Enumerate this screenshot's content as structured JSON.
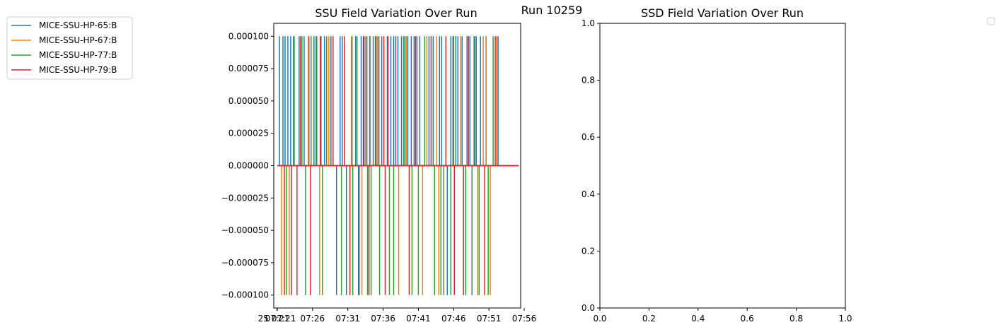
{
  "suptitle": "Run 10259",
  "empty_legend_box": true,
  "chart_data": [
    {
      "type": "line",
      "title": "SSU Field Variation Over Run",
      "xlabel": "",
      "ylabel": "",
      "ylim": [
        -0.00011,
        0.00011
      ],
      "yticks": [
        "0.000100",
        "0.000075",
        "0.000050",
        "0.000025",
        "0.000000",
        "−0.000025",
        "−0.000050",
        "−0.000075",
        "−0.000100"
      ],
      "ytick_values": [
        0.0001,
        7.5e-05,
        5e-05,
        2.5e-05,
        0,
        -2.5e-05,
        -5e-05,
        -7.5e-05,
        -0.0001
      ],
      "xticks": [
        "25 07:21",
        "07:21",
        "07:26",
        "07:31",
        "07:36",
        "07:41",
        "07:46",
        "07:51",
        "07:56"
      ],
      "xtick_values": [
        -0.05,
        0,
        5,
        10,
        15,
        20,
        25,
        30,
        35
      ],
      "xlim": [
        -0.5,
        34.5
      ],
      "x_unit": "minutes after 07:21",
      "legend": {
        "placement": "outside-left"
      },
      "series": [
        {
          "name": "MICE-SSU-HP-65:B",
          "color": "#1f77b4",
          "spikes": [
            [
              0.3,
              1
            ],
            [
              0.8,
              1
            ],
            [
              1.1,
              1
            ],
            [
              1.5,
              1
            ],
            [
              1.9,
              1
            ],
            [
              2.3,
              1
            ],
            [
              3.1,
              1
            ],
            [
              3.8,
              1
            ],
            [
              4.4,
              1
            ],
            [
              5.2,
              1
            ],
            [
              5.6,
              1
            ],
            [
              6.2,
              1
            ],
            [
              6.7,
              1
            ],
            [
              7.6,
              1
            ],
            [
              8.4,
              -1
            ],
            [
              8.9,
              1
            ],
            [
              9.2,
              1
            ],
            [
              9.8,
              -1
            ],
            [
              10.6,
              1
            ],
            [
              11.1,
              1
            ],
            [
              11.5,
              -1
            ],
            [
              11.9,
              1
            ],
            [
              12.3,
              1
            ],
            [
              12.7,
              1
            ],
            [
              13.1,
              1
            ],
            [
              13.6,
              1
            ],
            [
              14.4,
              1
            ],
            [
              14.8,
              1
            ],
            [
              15.6,
              1
            ],
            [
              16.1,
              1
            ],
            [
              16.5,
              1
            ],
            [
              17.1,
              1
            ],
            [
              17.6,
              1
            ],
            [
              18.1,
              1
            ],
            [
              18.5,
              1
            ],
            [
              19.0,
              1
            ],
            [
              19.4,
              1
            ],
            [
              19.8,
              1
            ],
            [
              20.2,
              1
            ],
            [
              21.5,
              1
            ],
            [
              22.1,
              1
            ],
            [
              23.0,
              1
            ],
            [
              23.3,
              1
            ],
            [
              24.1,
              -1
            ],
            [
              24.6,
              1
            ],
            [
              24.9,
              1
            ],
            [
              25.3,
              1
            ],
            [
              25.6,
              1
            ],
            [
              26.2,
              1
            ],
            [
              26.9,
              1
            ],
            [
              27.3,
              1
            ],
            [
              27.9,
              1
            ],
            [
              28.2,
              1
            ],
            [
              28.8,
              1
            ],
            [
              29.6,
              1
            ],
            [
              31.1,
              1
            ],
            [
              31.3,
              1
            ]
          ]
        },
        {
          "name": "MICE-SSU-HP-67:B",
          "color": "#ff7f0e",
          "spikes": [
            [
              0.6,
              -1
            ],
            [
              1.7,
              -1
            ],
            [
              4.5,
              1
            ],
            [
              6.0,
              -1
            ],
            [
              7.3,
              1
            ],
            [
              10.5,
              1
            ],
            [
              12.0,
              -1
            ],
            [
              12.5,
              1
            ],
            [
              13.2,
              1
            ],
            [
              14.2,
              1
            ],
            [
              17.2,
              -1
            ],
            [
              18.3,
              1
            ],
            [
              20.6,
              -1
            ],
            [
              21.2,
              1
            ],
            [
              22.6,
              1
            ],
            [
              22.9,
              -1
            ],
            [
              26.0,
              1
            ],
            [
              28.4,
              -1
            ],
            [
              29.2,
              1
            ],
            [
              29.6,
              1
            ],
            [
              30.2,
              -1
            ],
            [
              31.1,
              1
            ]
          ]
        },
        {
          "name": "MICE-SSU-HP-77:B",
          "color": "#2ca02c",
          "spikes": [
            [
              1.3,
              -1
            ],
            [
              2.4,
              1
            ],
            [
              3.5,
              1
            ],
            [
              4.0,
              -1
            ],
            [
              4.8,
              1
            ],
            [
              5.5,
              1
            ],
            [
              6.4,
              -1
            ],
            [
              7.0,
              1
            ],
            [
              9.1,
              -1
            ],
            [
              10.7,
              -1
            ],
            [
              11.3,
              1
            ],
            [
              12.8,
              -1
            ],
            [
              13.3,
              -1
            ],
            [
              13.9,
              1
            ],
            [
              14.5,
              -1
            ],
            [
              15.9,
              -1
            ],
            [
              16.5,
              -1
            ],
            [
              17.9,
              1
            ],
            [
              19.1,
              -1
            ],
            [
              20.0,
              -1
            ],
            [
              20.9,
              1
            ],
            [
              22.3,
              -1
            ],
            [
              23.2,
              -1
            ],
            [
              23.6,
              -1
            ],
            [
              24.6,
              -1
            ],
            [
              25.0,
              1
            ],
            [
              26.7,
              -1
            ],
            [
              27.6,
              -1
            ],
            [
              28.0,
              1
            ],
            [
              28.6,
              -1
            ],
            [
              29.9,
              -1
            ],
            [
              30.6,
              1
            ]
          ]
        },
        {
          "name": "MICE-SSU-HP-79:B",
          "color": "#d62728",
          "spikes": [
            [
              1.0,
              -1
            ],
            [
              2.0,
              -1
            ],
            [
              2.8,
              -1
            ],
            [
              3.3,
              1
            ],
            [
              4.7,
              -1
            ],
            [
              6.1,
              1
            ],
            [
              7.9,
              1
            ],
            [
              9.5,
              1
            ],
            [
              10.3,
              -1
            ],
            [
              11.6,
              -1
            ],
            [
              12.2,
              1
            ],
            [
              13.0,
              -1
            ],
            [
              14.0,
              1
            ],
            [
              15.1,
              1
            ],
            [
              15.3,
              -1
            ],
            [
              15.7,
              1
            ],
            [
              16.8,
              1
            ],
            [
              18.7,
              -1
            ],
            [
              19.6,
              1
            ],
            [
              21.8,
              1
            ],
            [
              23.9,
              1
            ],
            [
              25.1,
              -1
            ],
            [
              26.4,
              -1
            ],
            [
              27.1,
              1
            ],
            [
              29.4,
              -1
            ],
            [
              30.9,
              1
            ]
          ]
        }
      ]
    },
    {
      "type": "line",
      "title": "SSD Field Variation Over Run",
      "xlabel": "",
      "ylabel": "",
      "xlim": [
        0,
        1
      ],
      "ylim": [
        0,
        1
      ],
      "xticks": [
        "0.0",
        "0.2",
        "0.4",
        "0.6",
        "0.8",
        "1.0"
      ],
      "xtick_values": [
        0,
        0.2,
        0.4,
        0.6,
        0.8,
        1.0
      ],
      "yticks": [
        "0.0",
        "0.2",
        "0.4",
        "0.6",
        "0.8",
        "1.0"
      ],
      "ytick_values": [
        0,
        0.2,
        0.4,
        0.6,
        0.8,
        1.0
      ],
      "series": []
    }
  ]
}
